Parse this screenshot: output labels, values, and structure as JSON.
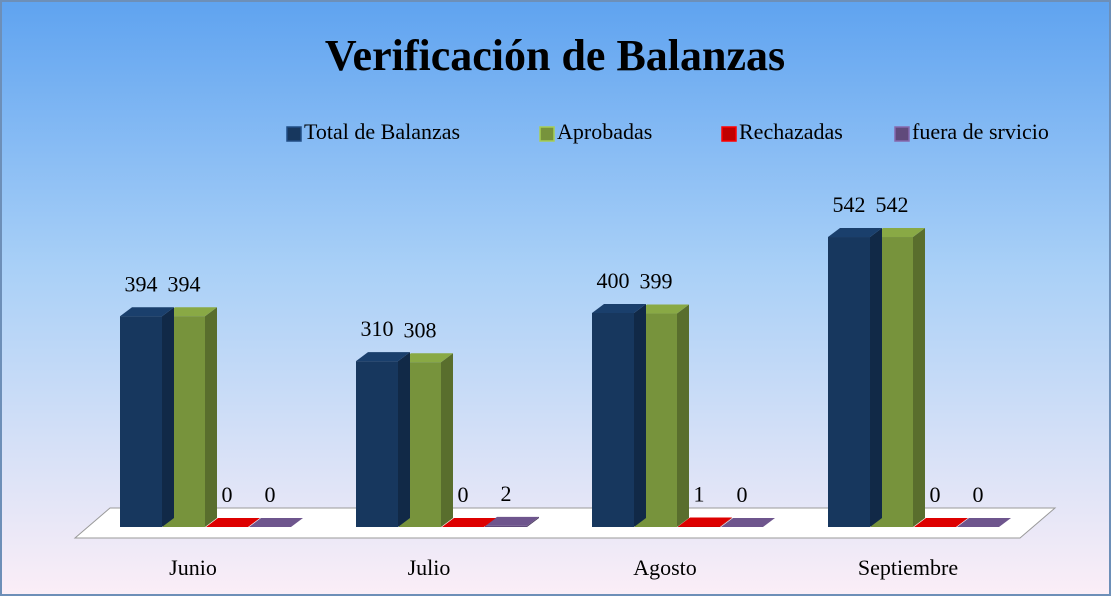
{
  "chart_data": {
    "type": "bar",
    "title": "Verificación de Balanzas",
    "categories": [
      "Junio",
      "Julio",
      "Agosto",
      "Septiembre"
    ],
    "series": [
      {
        "name": "Total de Balanzas",
        "color": "#17375e",
        "values": [
          394,
          310,
          400,
          542
        ]
      },
      {
        "name": "Aprobadas",
        "color": "#77933c",
        "values": [
          394,
          308,
          399,
          542
        ]
      },
      {
        "name": "Rechazadas",
        "color": "#c00000",
        "values": [
          0,
          0,
          1,
          0
        ]
      },
      {
        "name": "fuera de srvicio",
        "color": "#604a7b",
        "values": [
          0,
          2,
          0,
          0
        ]
      }
    ],
    "legend": "top"
  }
}
